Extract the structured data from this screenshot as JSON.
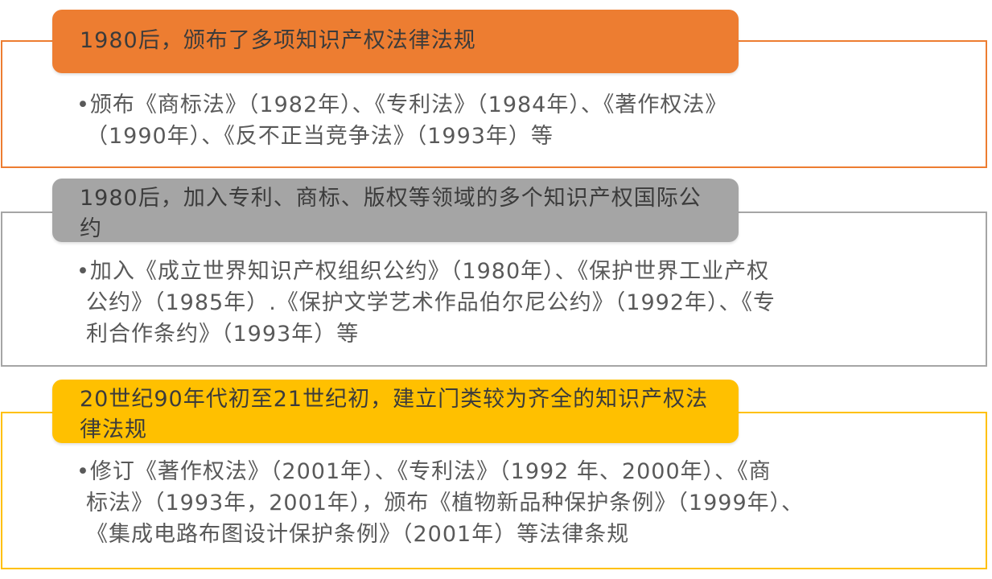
{
  "colors": {
    "section1": "#ED7D31",
    "section2": "#A5A5A5",
    "section3": "#FFC000"
  },
  "sections": [
    {
      "heading": "1980后，颁布了多项知识产权法律法规",
      "lines": [
        "•颁布《商标法》（1982年）、《专利法》（1984年）、《著作权法》",
        "（1990年）、《反不正当竞争法》（1993年）等"
      ]
    },
    {
      "heading": "1980后，加入专利、商标、版权等领域的多个知识产权国际公约",
      "lines": [
        "•加入《成立世界知识产权组织公约》（1980年）、《保护世界工业产权",
        "公约》（1985年）.《保护文学艺术作品伯尔尼公约》（1992年）、《专",
        "利合作条约》（1993年）等"
      ]
    },
    {
      "heading": "20世纪90年代初至21世纪初，建立门类较为齐全的知识产权法律法规",
      "lines": [
        "•修订《著作权法》（2001年）、《专利法》（1992 年、2000年）、《商",
        "标法》（1993年，2001年），颁布《植物新品种保护条例》（1999年）、",
        "《集成电路布图设计保护条例》（2001年）等法律条规"
      ]
    }
  ]
}
